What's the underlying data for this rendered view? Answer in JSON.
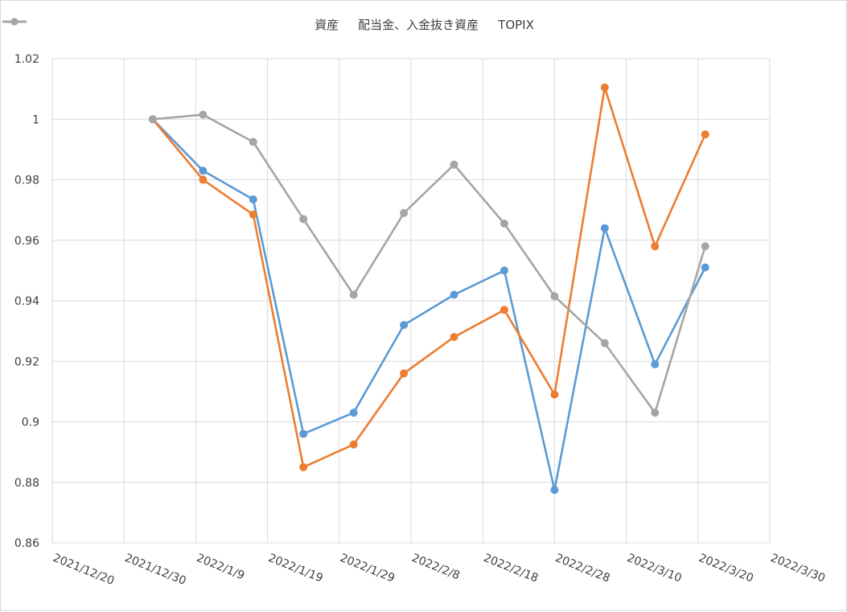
{
  "chart_data": {
    "type": "line",
    "title": "",
    "xlabel": "",
    "ylabel": "",
    "x_axis": {
      "type": "date",
      "min": "2021/12/20",
      "max": "2022/3/30",
      "tick_labels": [
        "2021/12/20",
        "2021/12/30",
        "2022/1/9",
        "2022/1/19",
        "2022/1/29",
        "2022/2/8",
        "2022/2/18",
        "2022/2/28",
        "2022/3/10",
        "2022/3/20",
        "2022/3/30"
      ]
    },
    "ylim": [
      0.86,
      1.02
    ],
    "y_tick_labels": [
      "0.86",
      "0.88",
      "0.9",
      "0.92",
      "0.94",
      "0.96",
      "0.98",
      "1",
      "1.02"
    ],
    "grid": true,
    "legend_position": "top",
    "x": [
      "2022/1/3",
      "2022/1/10",
      "2022/1/17",
      "2022/1/24",
      "2022/1/31",
      "2022/2/7",
      "2022/2/14",
      "2022/2/21",
      "2022/2/28",
      "2022/3/7",
      "2022/3/14",
      "2022/3/21"
    ],
    "series": [
      {
        "name": "資産",
        "color": "#5b9bd5",
        "values": [
          1.0,
          0.983,
          0.9735,
          0.896,
          0.903,
          0.932,
          0.942,
          0.95,
          0.8775,
          0.964,
          0.919,
          0.951
        ]
      },
      {
        "name": "配当金、入金抜き資産",
        "color": "#ed7d31",
        "values": [
          1.0,
          0.98,
          0.9685,
          0.885,
          0.8925,
          0.916,
          0.928,
          0.937,
          0.909,
          1.0105,
          0.958,
          0.995
        ]
      },
      {
        "name": "TOPIX",
        "color": "#a5a5a5",
        "values": [
          1.0,
          1.0015,
          0.9925,
          0.967,
          0.942,
          0.969,
          0.985,
          0.9655,
          0.9415,
          0.926,
          0.903,
          0.958
        ]
      }
    ]
  }
}
